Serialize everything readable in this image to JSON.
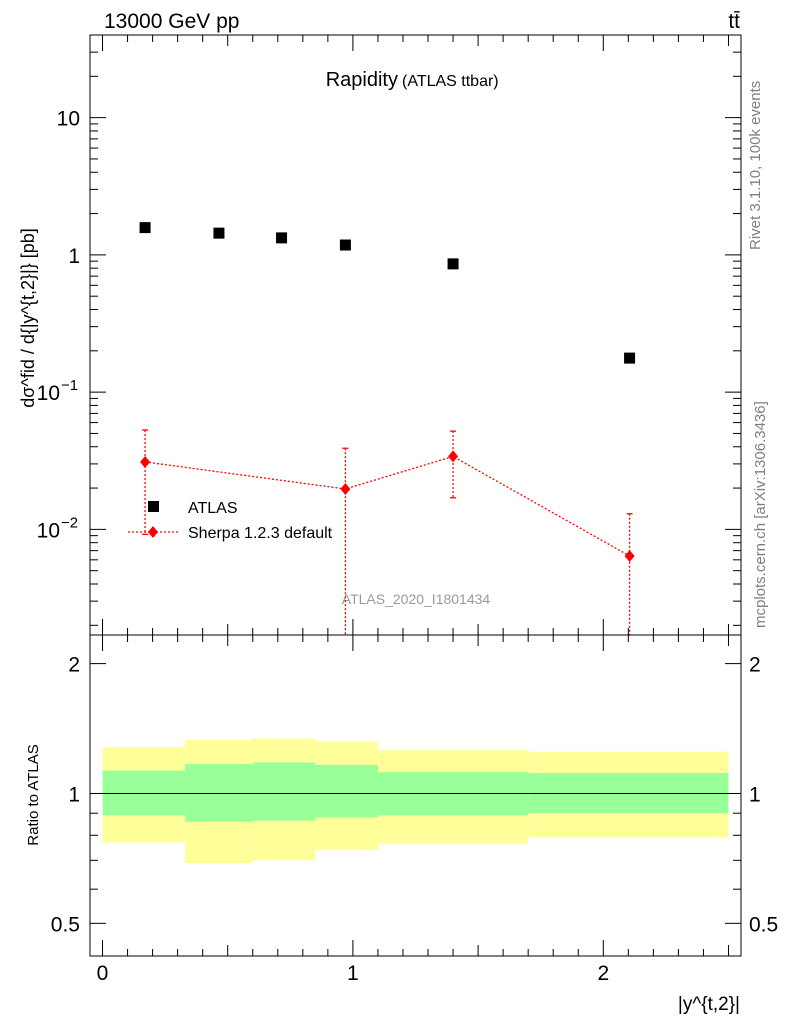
{
  "header": {
    "energy_label": "13000 GeV pp",
    "process_label": "tt̄"
  },
  "side_labels": {
    "rivet": "Rivet 3.1.10,  100k events",
    "mcplots": "mcplots.cern.ch [arXiv:1306.3436]"
  },
  "chart_data": [
    {
      "type": "scatter",
      "title": "Rapidity",
      "subtitle": "(ATLAS ttbar)",
      "ylabel": "dσ^fid / d{|y^{t,2}|} [pb]",
      "yscale": "log",
      "ylim": [
        0.0017,
        40
      ],
      "xlim": [
        -0.05,
        2.55
      ],
      "watermark": "ATLAS_2020_I1801434",
      "yticks": [
        {
          "value": 0.01,
          "base": "10",
          "exp": "−2"
        },
        {
          "value": 0.1,
          "base": "10",
          "exp": "−1"
        },
        {
          "value": 1,
          "base": "1",
          "exp": ""
        },
        {
          "value": 10,
          "base": "10",
          "exp": ""
        }
      ],
      "legend_position": "lower-left",
      "series": [
        {
          "name": "ATLAS",
          "color": "#000000",
          "marker": "square",
          "x": [
            0.17,
            0.465,
            0.715,
            0.97,
            1.4,
            2.105
          ],
          "y": [
            1.58,
            1.44,
            1.33,
            1.18,
            0.86,
            0.177
          ]
        },
        {
          "name": "Sherpa 1.2.3 default",
          "color": "#ff0000",
          "marker": "diamond",
          "line": "dotted",
          "x": [
            0.17,
            0.97,
            1.4,
            2.105
          ],
          "y": [
            0.031,
            0.0197,
            0.034,
            0.0064
          ],
          "y_low": [
            0.0092,
            0.0001,
            0.017,
            0.0001
          ],
          "y_high": [
            0.053,
            0.039,
            0.052,
            0.013
          ]
        }
      ]
    },
    {
      "type": "area",
      "ylabel": "Ratio to ATLAS",
      "xlabel": "|y^{t,2}|",
      "ylim": [
        0.42,
        2.33
      ],
      "xlim": [
        -0.05,
        2.55
      ],
      "yticks": [
        0.5,
        1,
        2
      ],
      "xticks": [
        0,
        1,
        2
      ],
      "reference_line": 1,
      "bin_edges": [
        0,
        0.33,
        0.6,
        0.85,
        1.1,
        1.7,
        2.5
      ],
      "bands": [
        {
          "name": "total uncertainty",
          "color": "#ffff99",
          "low": [
            0.77,
            0.69,
            0.7,
            0.74,
            0.765,
            0.79
          ],
          "high": [
            1.28,
            1.33,
            1.34,
            1.32,
            1.26,
            1.25
          ]
        },
        {
          "name": "statistical uncertainty",
          "color": "#99ff99",
          "low": [
            0.89,
            0.86,
            0.865,
            0.88,
            0.89,
            0.9
          ],
          "high": [
            1.13,
            1.17,
            1.18,
            1.165,
            1.12,
            1.115
          ]
        }
      ]
    }
  ]
}
